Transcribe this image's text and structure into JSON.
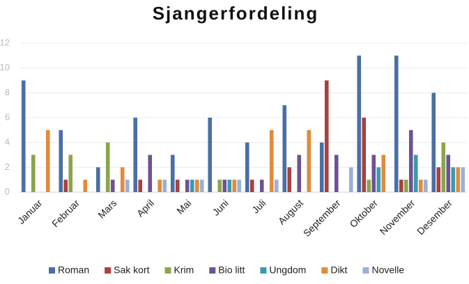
{
  "chart_data": {
    "type": "bar",
    "title": "Sjangerfordeling",
    "categories": [
      "Januar",
      "Februar",
      "Mars",
      "April",
      "Mai",
      "Juni",
      "Juli",
      "August",
      "September",
      "Oktober",
      "November",
      "Desember"
    ],
    "series": [
      {
        "name": "Roman",
        "color": "#4a6fa5",
        "values": [
          9,
          5,
          2,
          6,
          3,
          6,
          4,
          7,
          4,
          11,
          11,
          8
        ]
      },
      {
        "name": "Sak kort",
        "color": "#a8413f",
        "values": [
          0,
          1,
          0,
          1,
          1,
          0,
          1,
          2,
          9,
          6,
          1,
          2
        ]
      },
      {
        "name": "Krim",
        "color": "#8aa54b",
        "values": [
          3,
          3,
          4,
          0,
          0,
          1,
          0,
          0,
          0,
          1,
          1,
          4
        ]
      },
      {
        "name": "Bio litt",
        "color": "#6e5393",
        "values": [
          0,
          0,
          1,
          3,
          1,
          1,
          1,
          3,
          3,
          3,
          5,
          3
        ]
      },
      {
        "name": "Ungdom",
        "color": "#3d98ae",
        "values": [
          0,
          0,
          0,
          0,
          1,
          1,
          0,
          0,
          0,
          2,
          3,
          2
        ]
      },
      {
        "name": "Dikt",
        "color": "#e08b3c",
        "values": [
          5,
          1,
          2,
          1,
          1,
          1,
          5,
          5,
          0,
          3,
          1,
          2
        ]
      },
      {
        "name": "Novelle",
        "color": "#9bb0d4",
        "values": [
          0,
          0,
          1,
          1,
          1,
          1,
          1,
          0,
          2,
          0,
          1,
          2
        ]
      }
    ],
    "ylim": [
      0,
      12
    ],
    "yticks": [
      0,
      2,
      4,
      6,
      8,
      10,
      12
    ],
    "grid": true,
    "legend": "bottom"
  }
}
